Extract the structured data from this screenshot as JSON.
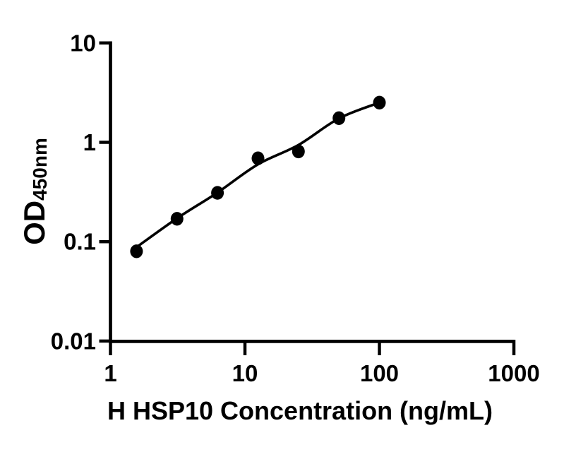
{
  "figure": {
    "background": "#ffffff",
    "ink_color": "#000000"
  },
  "chart_data": {
    "type": "scatter",
    "title": "",
    "xlabel": "H HSP10 Concentration (ng/mL)",
    "ylabel_main": "OD",
    "ylabel_sub": "450nm",
    "x_scale": "log",
    "y_scale": "log",
    "xlim": [
      1,
      1000
    ],
    "ylim": [
      0.01,
      10
    ],
    "x_tick_values": [
      1,
      10,
      100,
      1000
    ],
    "x_tick_labels": [
      "1",
      "10",
      "100",
      "1000"
    ],
    "y_tick_values": [
      10,
      1,
      0.1,
      0.01
    ],
    "y_tick_labels": [
      "10",
      "1",
      "0.1",
      "0.01"
    ],
    "grid": false,
    "legend": "none",
    "marker_color": "#000000",
    "line_color": "#000000",
    "series": [
      {
        "name": "standard-points",
        "type": "scatter",
        "marker": "filled-circle",
        "x": [
          1.563,
          3.125,
          6.25,
          12.5,
          25,
          50,
          100
        ],
        "y": [
          0.08,
          0.17,
          0.31,
          0.69,
          0.81,
          1.75,
          2.51
        ]
      },
      {
        "name": "fit-line",
        "type": "line",
        "x": [
          1.563,
          3.125,
          6.25,
          12.5,
          25,
          50,
          100
        ],
        "y": [
          0.088,
          0.172,
          0.312,
          0.6,
          0.94,
          1.74,
          2.51
        ]
      }
    ]
  }
}
